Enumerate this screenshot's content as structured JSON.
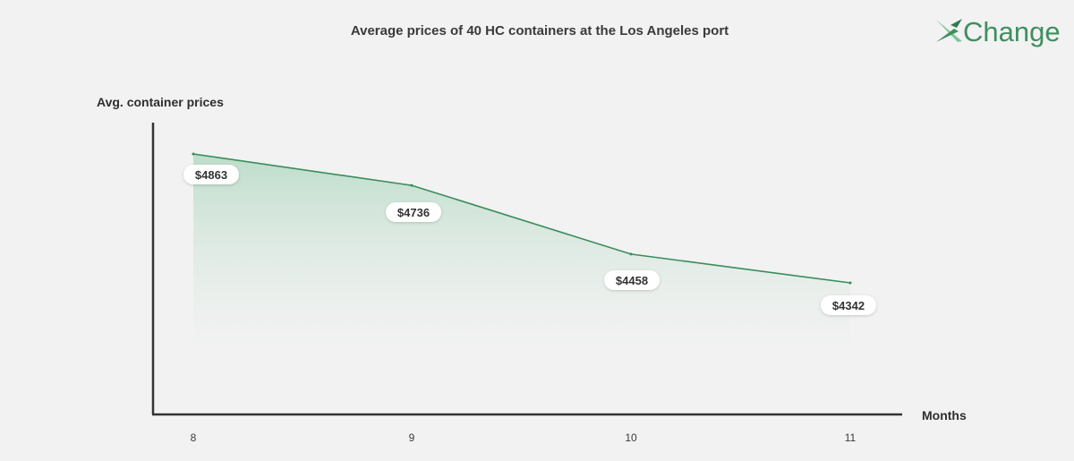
{
  "chart_data": {
    "type": "area",
    "title": "Average prices of 40 HC containers at the Los Angeles port",
    "xlabel": "Months",
    "ylabel": "Avg. container prices",
    "categories": [
      "8",
      "9",
      "10",
      "11"
    ],
    "values": [
      4863,
      4736,
      4458,
      4342
    ],
    "data_labels": [
      "$4863",
      "$4736",
      "$4458",
      "$4342"
    ],
    "ylim": [
      4000,
      5000
    ],
    "grid": false,
    "legend": "none"
  },
  "brand": {
    "logo_text": "Change",
    "logo_icon": "x-mark-icon",
    "accent_color": "#3f8f60"
  },
  "colors": {
    "line": "#3a8c5c",
    "area_top": "#b9dcc8",
    "axis": "#333333",
    "label_bg": "#ffffff"
  }
}
